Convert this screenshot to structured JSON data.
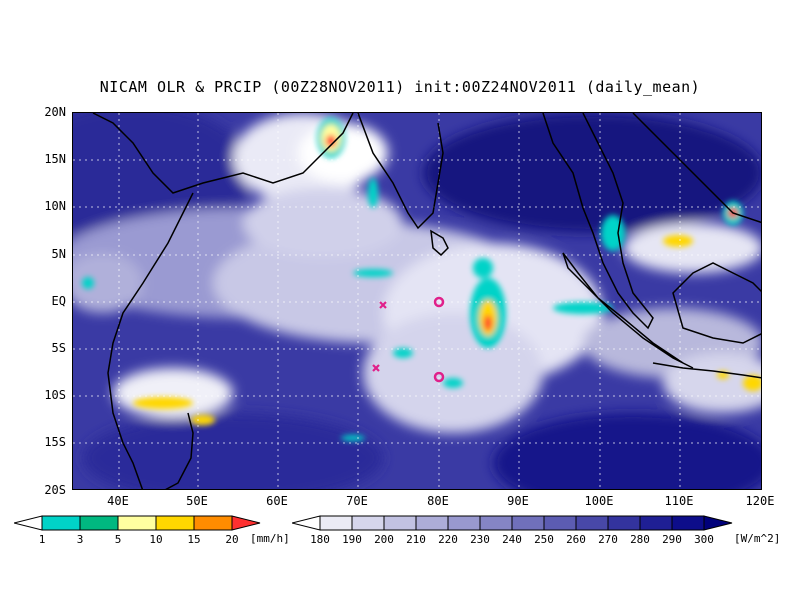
{
  "title": "NICAM OLR & PRCIP (00Z28NOV2011) init:00Z24NOV2011 (daily_mean)",
  "lat_labels": [
    "20N",
    "15N",
    "10N",
    "5N",
    "EQ",
    "5S",
    "10S",
    "15S",
    "20S"
  ],
  "lon_labels": [
    "40E",
    "50E",
    "60E",
    "70E",
    "80E",
    "90E",
    "100E",
    "110E",
    "120E"
  ],
  "precip_colorbar": {
    "labels": [
      "1",
      "3",
      "5",
      "10",
      "15",
      "20"
    ],
    "unit": "[mm/h]",
    "colors": [
      "#ffffff",
      "#00d3c8",
      "#00b880",
      "#ffffa0",
      "#ffd700",
      "#ff8c00",
      "#ff3030"
    ]
  },
  "olr_colorbar": {
    "labels": [
      "180",
      "190",
      "200",
      "210",
      "220",
      "230",
      "240",
      "250",
      "260",
      "270",
      "280",
      "290",
      "300"
    ],
    "unit": "[W/m^2]",
    "colors": [
      "#ffffff",
      "#ebebf5",
      "#d6d6ec",
      "#c2c2e2",
      "#adadd8",
      "#9999cf",
      "#8585c5",
      "#7070bb",
      "#5c5cb2",
      "#4848a8",
      "#33339e",
      "#1f1f94",
      "#0d0d8a",
      "#00007a"
    ]
  },
  "markers": [
    {
      "type": "cross",
      "lon": 73,
      "lat": -0.5,
      "color": "#e0208a"
    },
    {
      "type": "cross",
      "lon": 72.5,
      "lat": -7.5,
      "color": "#e0208a"
    },
    {
      "type": "circle",
      "lon": 80,
      "lat": 0,
      "color": "#e0208a"
    },
    {
      "type": "circle",
      "lon": 80,
      "lat": -8,
      "color": "#e0208a"
    }
  ]
}
